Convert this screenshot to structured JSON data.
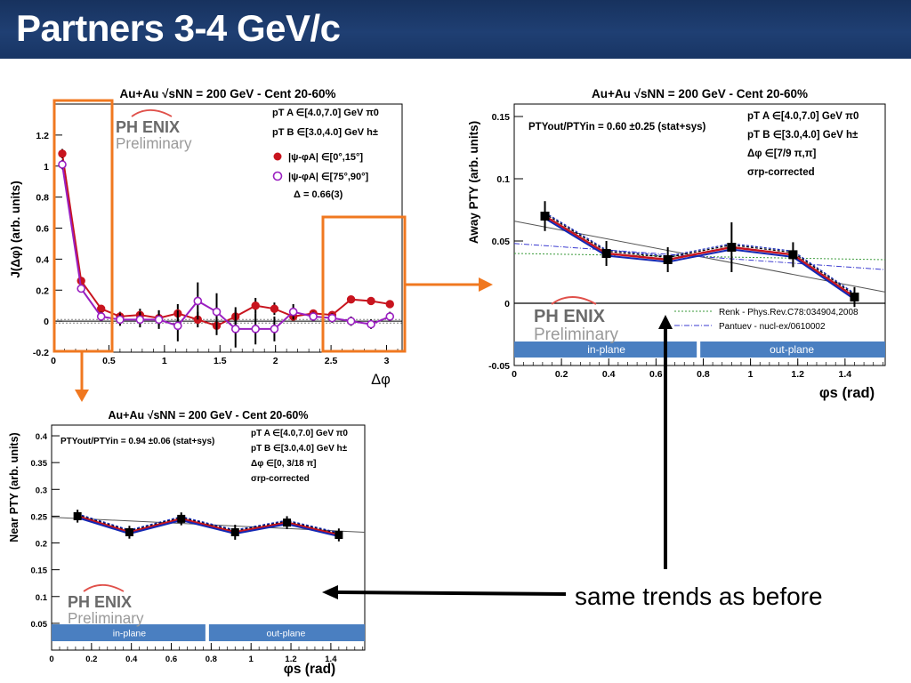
{
  "slide": {
    "title": "Partners 3-4 GeV/c",
    "annotation": "same trends as before"
  },
  "colors": {
    "title_bg": "#1f3f73",
    "highlight": "#f07820",
    "red": "#c8141e",
    "blue": "#1428b4",
    "band": "#4a7fc1"
  },
  "logo": {
    "name": "PH ENIX",
    "sub": "Preliminary"
  },
  "chart_data": [
    {
      "id": "jdphi",
      "type": "scatter",
      "title": "Au+Au √sNN = 200 GeV - Cent 20-60%",
      "xlabel": "Δφ",
      "ylabel": "J(Δφ) (arb. units)",
      "xlim": [
        0,
        3.14
      ],
      "ylim": [
        -0.2,
        1.4
      ],
      "xticks": [
        0,
        0.5,
        1,
        1.5,
        2,
        2.5,
        3
      ],
      "xticklabels": [
        "0",
        "0.5",
        "1",
        "1.5",
        "2",
        "2.5",
        "3"
      ],
      "yticks": [
        -0.2,
        0,
        0.2,
        0.4,
        0.6,
        0.8,
        1,
        1.2
      ],
      "yticklabels": [
        "-0.2",
        "0",
        "0.2",
        "0.4",
        "0.6",
        "0.8",
        "1",
        "1.2"
      ],
      "legend": [
        "pT A ∈[4.0,7.0] GeV π0",
        "pT B ∈[3.0,4.0] GeV h±",
        "|ψ-φA| ∈[0°,15°]",
        "|ψ-φA| ∈[75°,90°]",
        "Δ = 0.66(3)"
      ],
      "series": [
        {
          "name": "|ψ-φA| ∈[0°,15°]",
          "color": "#c8141e",
          "marker": "filled-circle",
          "x": [
            0.08,
            0.25,
            0.43,
            0.6,
            0.78,
            0.95,
            1.12,
            1.3,
            1.47,
            1.64,
            1.82,
            1.99,
            2.16,
            2.34,
            2.51,
            2.68,
            2.86,
            3.03
          ],
          "y": [
            1.08,
            0.26,
            0.08,
            0.03,
            0.04,
            0.02,
            0.05,
            0.01,
            -0.03,
            0.03,
            0.1,
            0.08,
            0.03,
            0.05,
            0.04,
            0.14,
            0.13,
            0.11
          ],
          "err": [
            0.03,
            0.02,
            0.02,
            0.03,
            0.04,
            0.05,
            0.06,
            0.05,
            0.06,
            0.06,
            0.05,
            0.04,
            0.02,
            0.02,
            0.02,
            0.02,
            0.02,
            0.02
          ]
        },
        {
          "name": "|ψ-φA| ∈[75°,90°]",
          "color": "#9a1fc0",
          "marker": "open-circle",
          "x": [
            0.08,
            0.25,
            0.43,
            0.6,
            0.78,
            0.95,
            1.12,
            1.3,
            1.47,
            1.64,
            1.82,
            1.99,
            2.16,
            2.34,
            2.51,
            2.68,
            2.86,
            3.03
          ],
          "y": [
            1.01,
            0.21,
            0.03,
            0.01,
            0.01,
            0.01,
            -0.03,
            0.13,
            0.06,
            -0.05,
            -0.05,
            -0.05,
            0.06,
            0.03,
            0.02,
            0.0,
            -0.02,
            0.03
          ],
          "err": [
            0.03,
            0.02,
            0.03,
            0.04,
            0.05,
            0.06,
            0.1,
            0.12,
            0.12,
            0.12,
            0.1,
            0.08,
            0.05,
            0.03,
            0.03,
            0.03,
            0.03,
            0.03
          ]
        }
      ]
    },
    {
      "id": "away",
      "type": "line",
      "title": "Au+Au √sNN = 200 GeV - Cent 20-60%",
      "xlabel": "φs (rad)",
      "ylabel": "Away PTY (arb. units)",
      "xlim": [
        0,
        1.57
      ],
      "ylim": [
        -0.05,
        0.16
      ],
      "xticks": [
        0,
        0.2,
        0.4,
        0.6,
        0.8,
        1,
        1.2,
        1.4
      ],
      "xticklabels": [
        "0",
        "0.2",
        "0.4",
        "0.6",
        "0.8",
        "1",
        "1.2",
        "1.4"
      ],
      "yticks": [
        -0.05,
        0,
        0.05,
        0.1,
        0.15
      ],
      "yticklabels": [
        "-0.05",
        "0",
        "0.05",
        "0.1",
        "0.15"
      ],
      "info": "PTYout/PTYin = 0.60 ±0.25 (stat+sys)",
      "legend": [
        "pT A ∈[4.0,7.0] GeV π0",
        "pT B ∈[3.0,4.0] GeV h±",
        "Δφ ∈[7/9 π,π]",
        "σrp-corrected"
      ],
      "theory": [
        "Renk - Phys.Rev.C78:034904,2008",
        "Pantuev - nucl-ex/0610002"
      ],
      "bands": [
        "in-plane",
        "out-plane"
      ],
      "x": [
        0.13,
        0.39,
        0.65,
        0.92,
        1.18,
        1.44
      ],
      "y": [
        0.07,
        0.04,
        0.035,
        0.045,
        0.039,
        0.005
      ],
      "err": [
        0.012,
        0.01,
        0.01,
        0.02,
        0.01,
        0.008
      ],
      "fit_line": {
        "x": [
          0,
          1.57
        ],
        "y": [
          0.066,
          0.009
        ]
      }
    },
    {
      "id": "near",
      "type": "line",
      "title": "Au+Au √sNN = 200 GeV - Cent 20-60%",
      "xlabel": "φs (rad)",
      "ylabel": "Near PTY (arb. units)",
      "xlim": [
        0,
        1.57
      ],
      "ylim": [
        0,
        0.42
      ],
      "xticks": [
        0,
        0.2,
        0.4,
        0.6,
        0.8,
        1,
        1.2,
        1.4
      ],
      "xticklabels": [
        "0",
        "0.2",
        "0.4",
        "0.6",
        "0.8",
        "1",
        "1.2",
        "1.4"
      ],
      "yticks": [
        0.05,
        0.1,
        0.15,
        0.2,
        0.25,
        0.3,
        0.35,
        0.4
      ],
      "yticklabels": [
        "0.05",
        "0.1",
        "0.15",
        "0.2",
        "0.25",
        "0.3",
        "0.35",
        "0.4"
      ],
      "info": "PTYout/PTYin = 0.94 ±0.06 (stat+sys)",
      "legend": [
        "pT A ∈[4.0,7.0] GeV π0",
        "pT B ∈[3.0,4.0] GeV h±",
        "Δφ ∈[0, 3/18 π]",
        "σrp-corrected"
      ],
      "bands": [
        "in-plane",
        "out-plane"
      ],
      "x": [
        0.13,
        0.39,
        0.65,
        0.92,
        1.18,
        1.44
      ],
      "y": [
        0.25,
        0.22,
        0.245,
        0.22,
        0.238,
        0.215
      ],
      "err": [
        0.012,
        0.012,
        0.012,
        0.014,
        0.012,
        0.012
      ],
      "fit_line": {
        "x": [
          0,
          1.57
        ],
        "y": [
          0.248,
          0.22
        ]
      }
    }
  ]
}
